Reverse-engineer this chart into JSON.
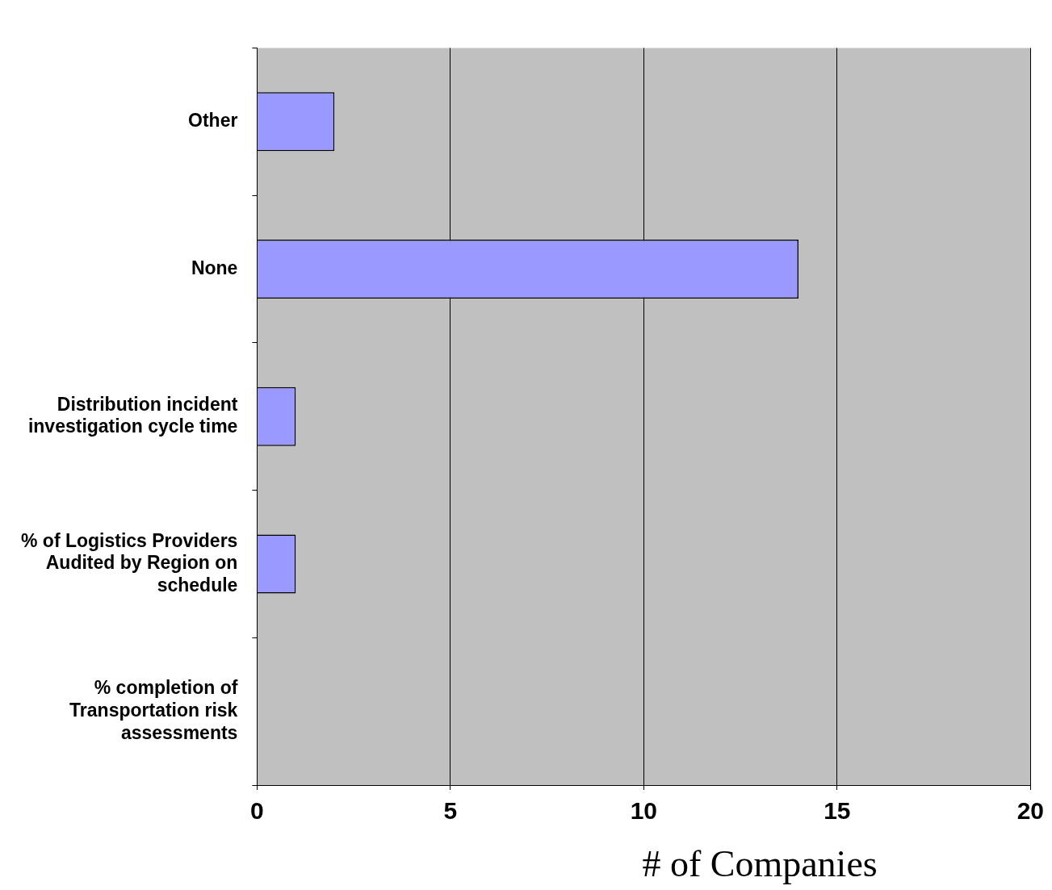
{
  "chart_data": {
    "type": "bar",
    "orientation": "horizontal",
    "categories": [
      "Other",
      "None",
      "Distribution incident investigation cycle time",
      "% of Logistics Providers Audited by Region on schedule",
      "% completion of Transportation risk assessments"
    ],
    "values": [
      2,
      14,
      1,
      1,
      0
    ],
    "color": "#9999ff",
    "xlabel": "# of Companies",
    "xlim": [
      0,
      20
    ],
    "xticks": [
      0,
      5,
      10,
      15,
      20
    ],
    "grid": "x",
    "legend": false
  }
}
